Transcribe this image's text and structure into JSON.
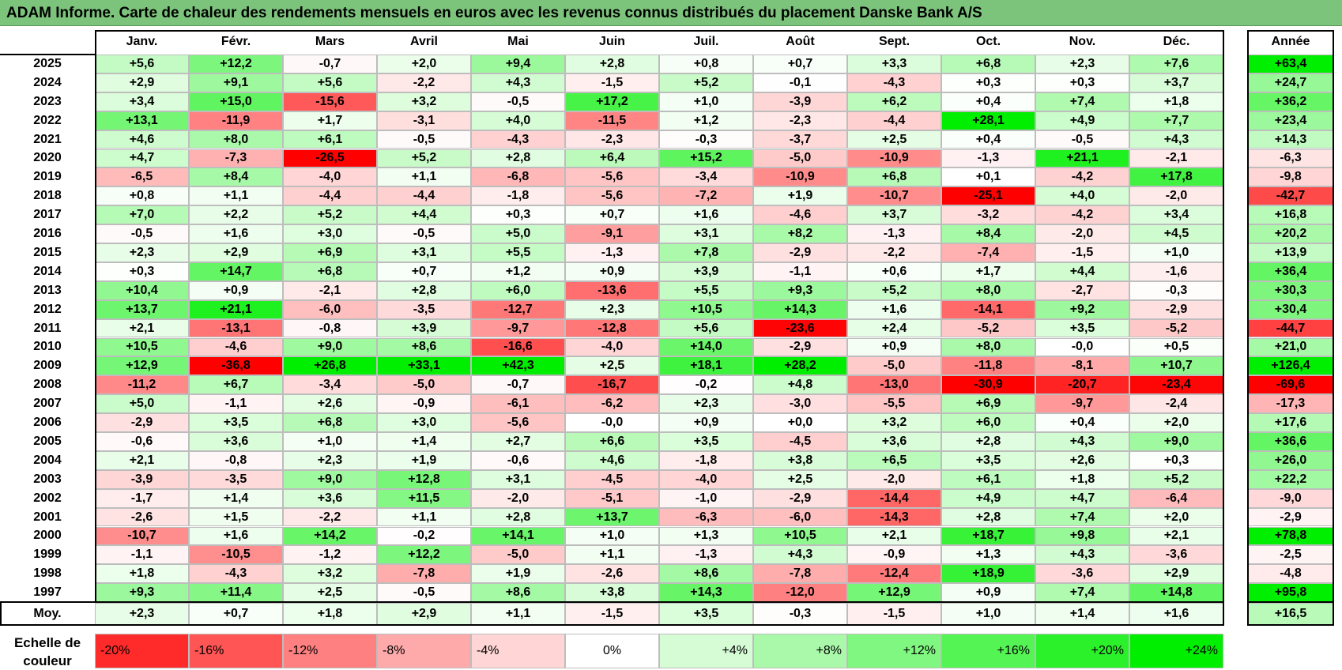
{
  "title": "ADAM Informe. Carte de chaleur des rendements mensuels en euros avec les revenus connus distribués du placement Danske Bank A/S",
  "chart_data": {
    "type": "heatmap",
    "title": "ADAM Informe. Carte de chaleur des rendements mensuels en euros avec les revenus connus distribués du placement Danske Bank A/S",
    "columns": [
      "Janv.",
      "Févr.",
      "Mars",
      "Avril",
      "Mai",
      "Juin",
      "Juil.",
      "Août",
      "Sept.",
      "Oct.",
      "Nov.",
      "Déc."
    ],
    "year_header": "Année",
    "rows": [
      {
        "year": "2025",
        "values": [
          "+5,6",
          "+12,2",
          "-0,7",
          "+2,0",
          "+9,4",
          "+2,8",
          "+0,8",
          "+0,7",
          "+3,3",
          "+6,8",
          "+2,3",
          "+7,6"
        ],
        "annual": "+63,4"
      },
      {
        "year": "2024",
        "values": [
          "+2,9",
          "+9,1",
          "+5,6",
          "-2,2",
          "+4,3",
          "-1,5",
          "+5,2",
          "-0,1",
          "-4,3",
          "+0,3",
          "+0,3",
          "+3,7"
        ],
        "annual": "+24,7"
      },
      {
        "year": "2023",
        "values": [
          "+3,4",
          "+15,0",
          "-15,6",
          "+3,2",
          "-0,5",
          "+17,2",
          "+1,0",
          "-3,9",
          "+6,2",
          "+0,4",
          "+7,4",
          "+1,8"
        ],
        "annual": "+36,2"
      },
      {
        "year": "2022",
        "values": [
          "+13,1",
          "-11,9",
          "+1,7",
          "-3,1",
          "+4,0",
          "-11,5",
          "+1,2",
          "-2,3",
          "-4,4",
          "+28,1",
          "+4,9",
          "+7,7"
        ],
        "annual": "+23,4"
      },
      {
        "year": "2021",
        "values": [
          "+4,6",
          "+8,0",
          "+6,1",
          "-0,5",
          "-4,3",
          "-2,3",
          "-0,3",
          "-3,7",
          "+2,5",
          "+0,4",
          "-0,5",
          "+4,3"
        ],
        "annual": "+14,3"
      },
      {
        "year": "2020",
        "values": [
          "+4,7",
          "-7,3",
          "-26,5",
          "+5,2",
          "+2,8",
          "+6,4",
          "+15,2",
          "-5,0",
          "-10,9",
          "-1,3",
          "+21,1",
          "-2,1"
        ],
        "annual": "-6,3"
      },
      {
        "year": "2019",
        "values": [
          "-6,5",
          "+8,4",
          "-4,0",
          "+1,1",
          "-6,8",
          "-5,6",
          "-3,4",
          "-10,9",
          "+6,8",
          "+0,1",
          "-4,2",
          "+17,8"
        ],
        "annual": "-9,8"
      },
      {
        "year": "2018",
        "values": [
          "+0,8",
          "+1,1",
          "-4,4",
          "-4,4",
          "-1,8",
          "-5,6",
          "-7,2",
          "+1,9",
          "-10,7",
          "-25,1",
          "+4,0",
          "-2,0"
        ],
        "annual": "-42,7"
      },
      {
        "year": "2017",
        "values": [
          "+7,0",
          "+2,2",
          "+5,2",
          "+4,4",
          "+0,3",
          "+0,7",
          "+1,6",
          "-4,6",
          "+3,7",
          "-3,2",
          "-4,2",
          "+3,4"
        ],
        "annual": "+16,8"
      },
      {
        "year": "2016",
        "values": [
          "-0,5",
          "+1,6",
          "+3,0",
          "-0,5",
          "+5,0",
          "-9,1",
          "+3,1",
          "+8,2",
          "-1,3",
          "+8,4",
          "-2,0",
          "+4,5"
        ],
        "annual": "+20,2"
      },
      {
        "year": "2015",
        "values": [
          "+2,3",
          "+2,9",
          "+6,9",
          "+3,1",
          "+5,5",
          "-1,3",
          "+7,8",
          "-2,9",
          "-2,2",
          "-7,4",
          "-1,5",
          "+1,0"
        ],
        "annual": "+13,9"
      },
      {
        "year": "2014",
        "values": [
          "+0,3",
          "+14,7",
          "+6,8",
          "+0,7",
          "+1,2",
          "+0,9",
          "+3,9",
          "-1,1",
          "+0,6",
          "+1,7",
          "+4,4",
          "-1,6"
        ],
        "annual": "+36,4"
      },
      {
        "year": "2013",
        "values": [
          "+10,4",
          "+0,9",
          "-2,1",
          "+2,8",
          "+6,0",
          "-13,6",
          "+5,5",
          "+9,3",
          "+5,2",
          "+8,0",
          "-2,7",
          "-0,3"
        ],
        "annual": "+30,3"
      },
      {
        "year": "2012",
        "values": [
          "+13,7",
          "+21,1",
          "-6,0",
          "-3,5",
          "-12,7",
          "+2,3",
          "+10,5",
          "+14,3",
          "+1,6",
          "-14,1",
          "+9,2",
          "-2,9"
        ],
        "annual": "+30,4"
      },
      {
        "year": "2011",
        "values": [
          "+2,1",
          "-13,1",
          "-0,8",
          "+3,9",
          "-9,7",
          "-12,8",
          "+5,6",
          "-23,6",
          "+2,4",
          "-5,2",
          "+3,5",
          "-5,2"
        ],
        "annual": "-44,7"
      },
      {
        "year": "2010",
        "values": [
          "+10,5",
          "-4,6",
          "+9,0",
          "+8,6",
          "-16,6",
          "-4,0",
          "+14,0",
          "-2,9",
          "+0,9",
          "+8,0",
          "-0,0",
          "+0,5"
        ],
        "annual": "+21,0"
      },
      {
        "year": "2009",
        "values": [
          "+12,9",
          "-36,8",
          "+26,8",
          "+33,1",
          "+42,3",
          "+2,5",
          "+18,1",
          "+28,2",
          "-5,0",
          "-11,8",
          "-8,1",
          "+10,7"
        ],
        "annual": "+126,4"
      },
      {
        "year": "2008",
        "values": [
          "-11,2",
          "+6,7",
          "-3,4",
          "-5,0",
          "-0,7",
          "-16,7",
          "-0,2",
          "+4,8",
          "-13,0",
          "-30,9",
          "-20,7",
          "-23,4"
        ],
        "annual": "-69,6"
      },
      {
        "year": "2007",
        "values": [
          "+5,0",
          "-1,1",
          "+2,6",
          "-0,9",
          "-6,1",
          "-6,2",
          "+2,3",
          "-3,0",
          "-5,5",
          "+6,9",
          "-9,7",
          "-2,4"
        ],
        "annual": "-17,3"
      },
      {
        "year": "2006",
        "values": [
          "-2,9",
          "+3,5",
          "+6,8",
          "+3,0",
          "-5,6",
          "-0,0",
          "+0,9",
          "+0,0",
          "+3,2",
          "+6,0",
          "+0,4",
          "+2,0"
        ],
        "annual": "+17,6"
      },
      {
        "year": "2005",
        "values": [
          "-0,6",
          "+3,6",
          "+1,0",
          "+1,4",
          "+2,7",
          "+6,6",
          "+3,5",
          "-4,5",
          "+3,6",
          "+2,8",
          "+4,3",
          "+9,0"
        ],
        "annual": "+36,6"
      },
      {
        "year": "2004",
        "values": [
          "+2,1",
          "-0,8",
          "+2,3",
          "+1,9",
          "-0,6",
          "+4,6",
          "-1,8",
          "+3,8",
          "+6,5",
          "+3,5",
          "+2,6",
          "+0,3"
        ],
        "annual": "+26,0"
      },
      {
        "year": "2003",
        "values": [
          "-3,9",
          "-3,5",
          "+9,0",
          "+12,8",
          "+3,1",
          "-4,5",
          "-4,0",
          "+2,5",
          "-2,0",
          "+6,1",
          "+1,8",
          "+5,2"
        ],
        "annual": "+22,2"
      },
      {
        "year": "2002",
        "values": [
          "-1,7",
          "+1,4",
          "+3,6",
          "+11,5",
          "-2,0",
          "-5,1",
          "-1,0",
          "-2,9",
          "-14,4",
          "+4,9",
          "+4,7",
          "-6,4"
        ],
        "annual": "-9,0"
      },
      {
        "year": "2001",
        "values": [
          "-2,6",
          "+1,5",
          "-2,2",
          "+1,1",
          "+2,8",
          "+13,7",
          "-6,3",
          "-6,0",
          "-14,3",
          "+2,8",
          "+7,4",
          "+2,0"
        ],
        "annual": "-2,9"
      },
      {
        "year": "2000",
        "values": [
          "-10,7",
          "+1,6",
          "+14,2",
          "-0,2",
          "+14,1",
          "+1,0",
          "+1,3",
          "+10,5",
          "+2,1",
          "+18,7",
          "+9,8",
          "+2,1"
        ],
        "annual": "+78,8"
      },
      {
        "year": "1999",
        "values": [
          "-1,1",
          "-10,5",
          "-1,2",
          "+12,2",
          "-5,0",
          "+1,1",
          "-1,3",
          "+4,3",
          "-0,9",
          "+1,3",
          "+4,3",
          "-3,6"
        ],
        "annual": "-2,5"
      },
      {
        "year": "1998",
        "values": [
          "+1,8",
          "-4,3",
          "+3,2",
          "-7,8",
          "+1,9",
          "-2,6",
          "+8,6",
          "-7,8",
          "-12,4",
          "+18,9",
          "-3,6",
          "+2,9"
        ],
        "annual": "-4,8"
      },
      {
        "year": "1997",
        "values": [
          "+9,3",
          "+11,4",
          "+2,5",
          "-0,5",
          "+8,6",
          "+3,8",
          "+14,3",
          "-12,0",
          "+12,9",
          "+0,9",
          "+7,4",
          "+14,8"
        ],
        "annual": "+95,8"
      }
    ],
    "average": {
      "label": "Moy.",
      "values": [
        "+2,3",
        "+0,7",
        "+1,8",
        "+2,9",
        "+1,1",
        "-1,5",
        "+3,5",
        "-0,3",
        "-1,5",
        "+1,0",
        "+1,4",
        "+1,6"
      ],
      "annual": "+16,5"
    },
    "scale": {
      "label_line1": "Echelle de",
      "label_line2": "couleur",
      "stops": [
        "-20%",
        "-16%",
        "-12%",
        "-8%",
        "-4%",
        "0%",
        "+4%",
        "+8%",
        "+12%",
        "+16%",
        "+20%",
        "+24%"
      ]
    },
    "colors": {
      "negative": "#ff0000",
      "positive": "#00ee00",
      "neutral": "#ffffff",
      "title_bg": "#7cc47c"
    }
  }
}
